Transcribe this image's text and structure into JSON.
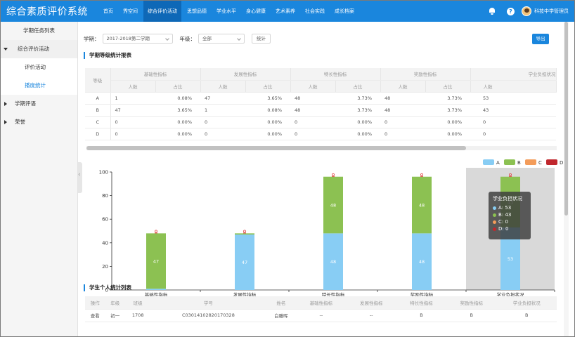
{
  "app": {
    "title": "综合素质评价系统",
    "user": "科技中学管理员"
  },
  "nav": [
    {
      "label": "首页"
    },
    {
      "label": "秀空间"
    },
    {
      "label": "综合评价活动"
    },
    {
      "label": "思想品德"
    },
    {
      "label": "学业水平"
    },
    {
      "label": "身心健康"
    },
    {
      "label": "艺术素养"
    },
    {
      "label": "社会实践"
    },
    {
      "label": "成长档案"
    }
  ],
  "nav_active_index": 2,
  "sidebar": {
    "task_list": "学期任务列表",
    "activity_group": "综合评价活动",
    "activity_children": [
      {
        "label": "评价活动"
      },
      {
        "label": "播度统计"
      }
    ],
    "semester_review": "学期评语",
    "honor": "荣誉"
  },
  "filters": {
    "semester_label": "学期：",
    "semester_value": "2017-2018第二学期",
    "grade_label": "年级：",
    "grade_value": "全部",
    "stat_button": "统计",
    "export_button": "导出"
  },
  "stats_table": {
    "title": "学期等级统计报表",
    "level_header": "等级",
    "groups": [
      "基础性指标",
      "发展性指标",
      "特长性指标",
      "奖励性指标",
      "学业负担状况"
    ],
    "sub_headers": [
      "人数",
      "占比"
    ],
    "rows": [
      {
        "level": "A",
        "cells": [
          "1",
          "0.08%",
          "47",
          "3.65%",
          "48",
          "3.73%",
          "48",
          "3.73%",
          "53"
        ]
      },
      {
        "level": "B",
        "cells": [
          "47",
          "3.65%",
          "1",
          "0.08%",
          "48",
          "3.73%",
          "48",
          "3.73%",
          "43"
        ]
      },
      {
        "level": "C",
        "cells": [
          "0",
          "0.00%",
          "0",
          "0.00%",
          "0",
          "0.00%",
          "0",
          "0.00%",
          "0"
        ]
      },
      {
        "level": "D",
        "cells": [
          "0",
          "0.00%",
          "0",
          "0.00%",
          "0",
          "0.00%",
          "0",
          "0.00%",
          "0"
        ]
      }
    ]
  },
  "chart_data": {
    "type": "bar",
    "stacked": true,
    "categories": [
      "基础性指标",
      "发展性指标",
      "特长性指标",
      "奖励性指标",
      "学业负担状况"
    ],
    "series": [
      {
        "name": "A",
        "color": "#88cdf4",
        "values": [
          1,
          47,
          48,
          48,
          53
        ]
      },
      {
        "name": "B",
        "color": "#8cc152",
        "values": [
          47,
          1,
          48,
          48,
          43
        ]
      },
      {
        "name": "C",
        "color": "#f39c5a",
        "values": [
          0,
          0,
          0,
          0,
          0
        ]
      },
      {
        "name": "D",
        "color": "#c0272d",
        "values": [
          0,
          0,
          0,
          0,
          0
        ]
      }
    ],
    "ylim": [
      0,
      100
    ],
    "yticks": [
      0,
      20,
      40,
      60,
      80,
      100
    ],
    "legend": "top-right",
    "grid": false,
    "highlight_category_index": 4
  },
  "tooltip": {
    "title": "学业负担状况",
    "rows": [
      {
        "text": "A: 53",
        "color": "#88cdf4"
      },
      {
        "text": "B: 43",
        "color": "#8cc152"
      },
      {
        "text": "C: 0",
        "color": "#f39c5a"
      },
      {
        "text": "D: 0",
        "color": "#c0272d"
      }
    ]
  },
  "student_list": {
    "title": "学生个人统计列表",
    "headers": [
      "操作",
      "年级",
      "班级",
      "学号",
      "姓名",
      "基础性指标",
      "发展性指标",
      "特长性指标",
      "奖励性指标",
      "学业负担状况"
    ],
    "rows": [
      [
        "查看",
        "初一",
        "1708",
        "C03014102820170328",
        "白雕晖",
        "--",
        "--",
        "B",
        "B",
        "B"
      ]
    ]
  }
}
